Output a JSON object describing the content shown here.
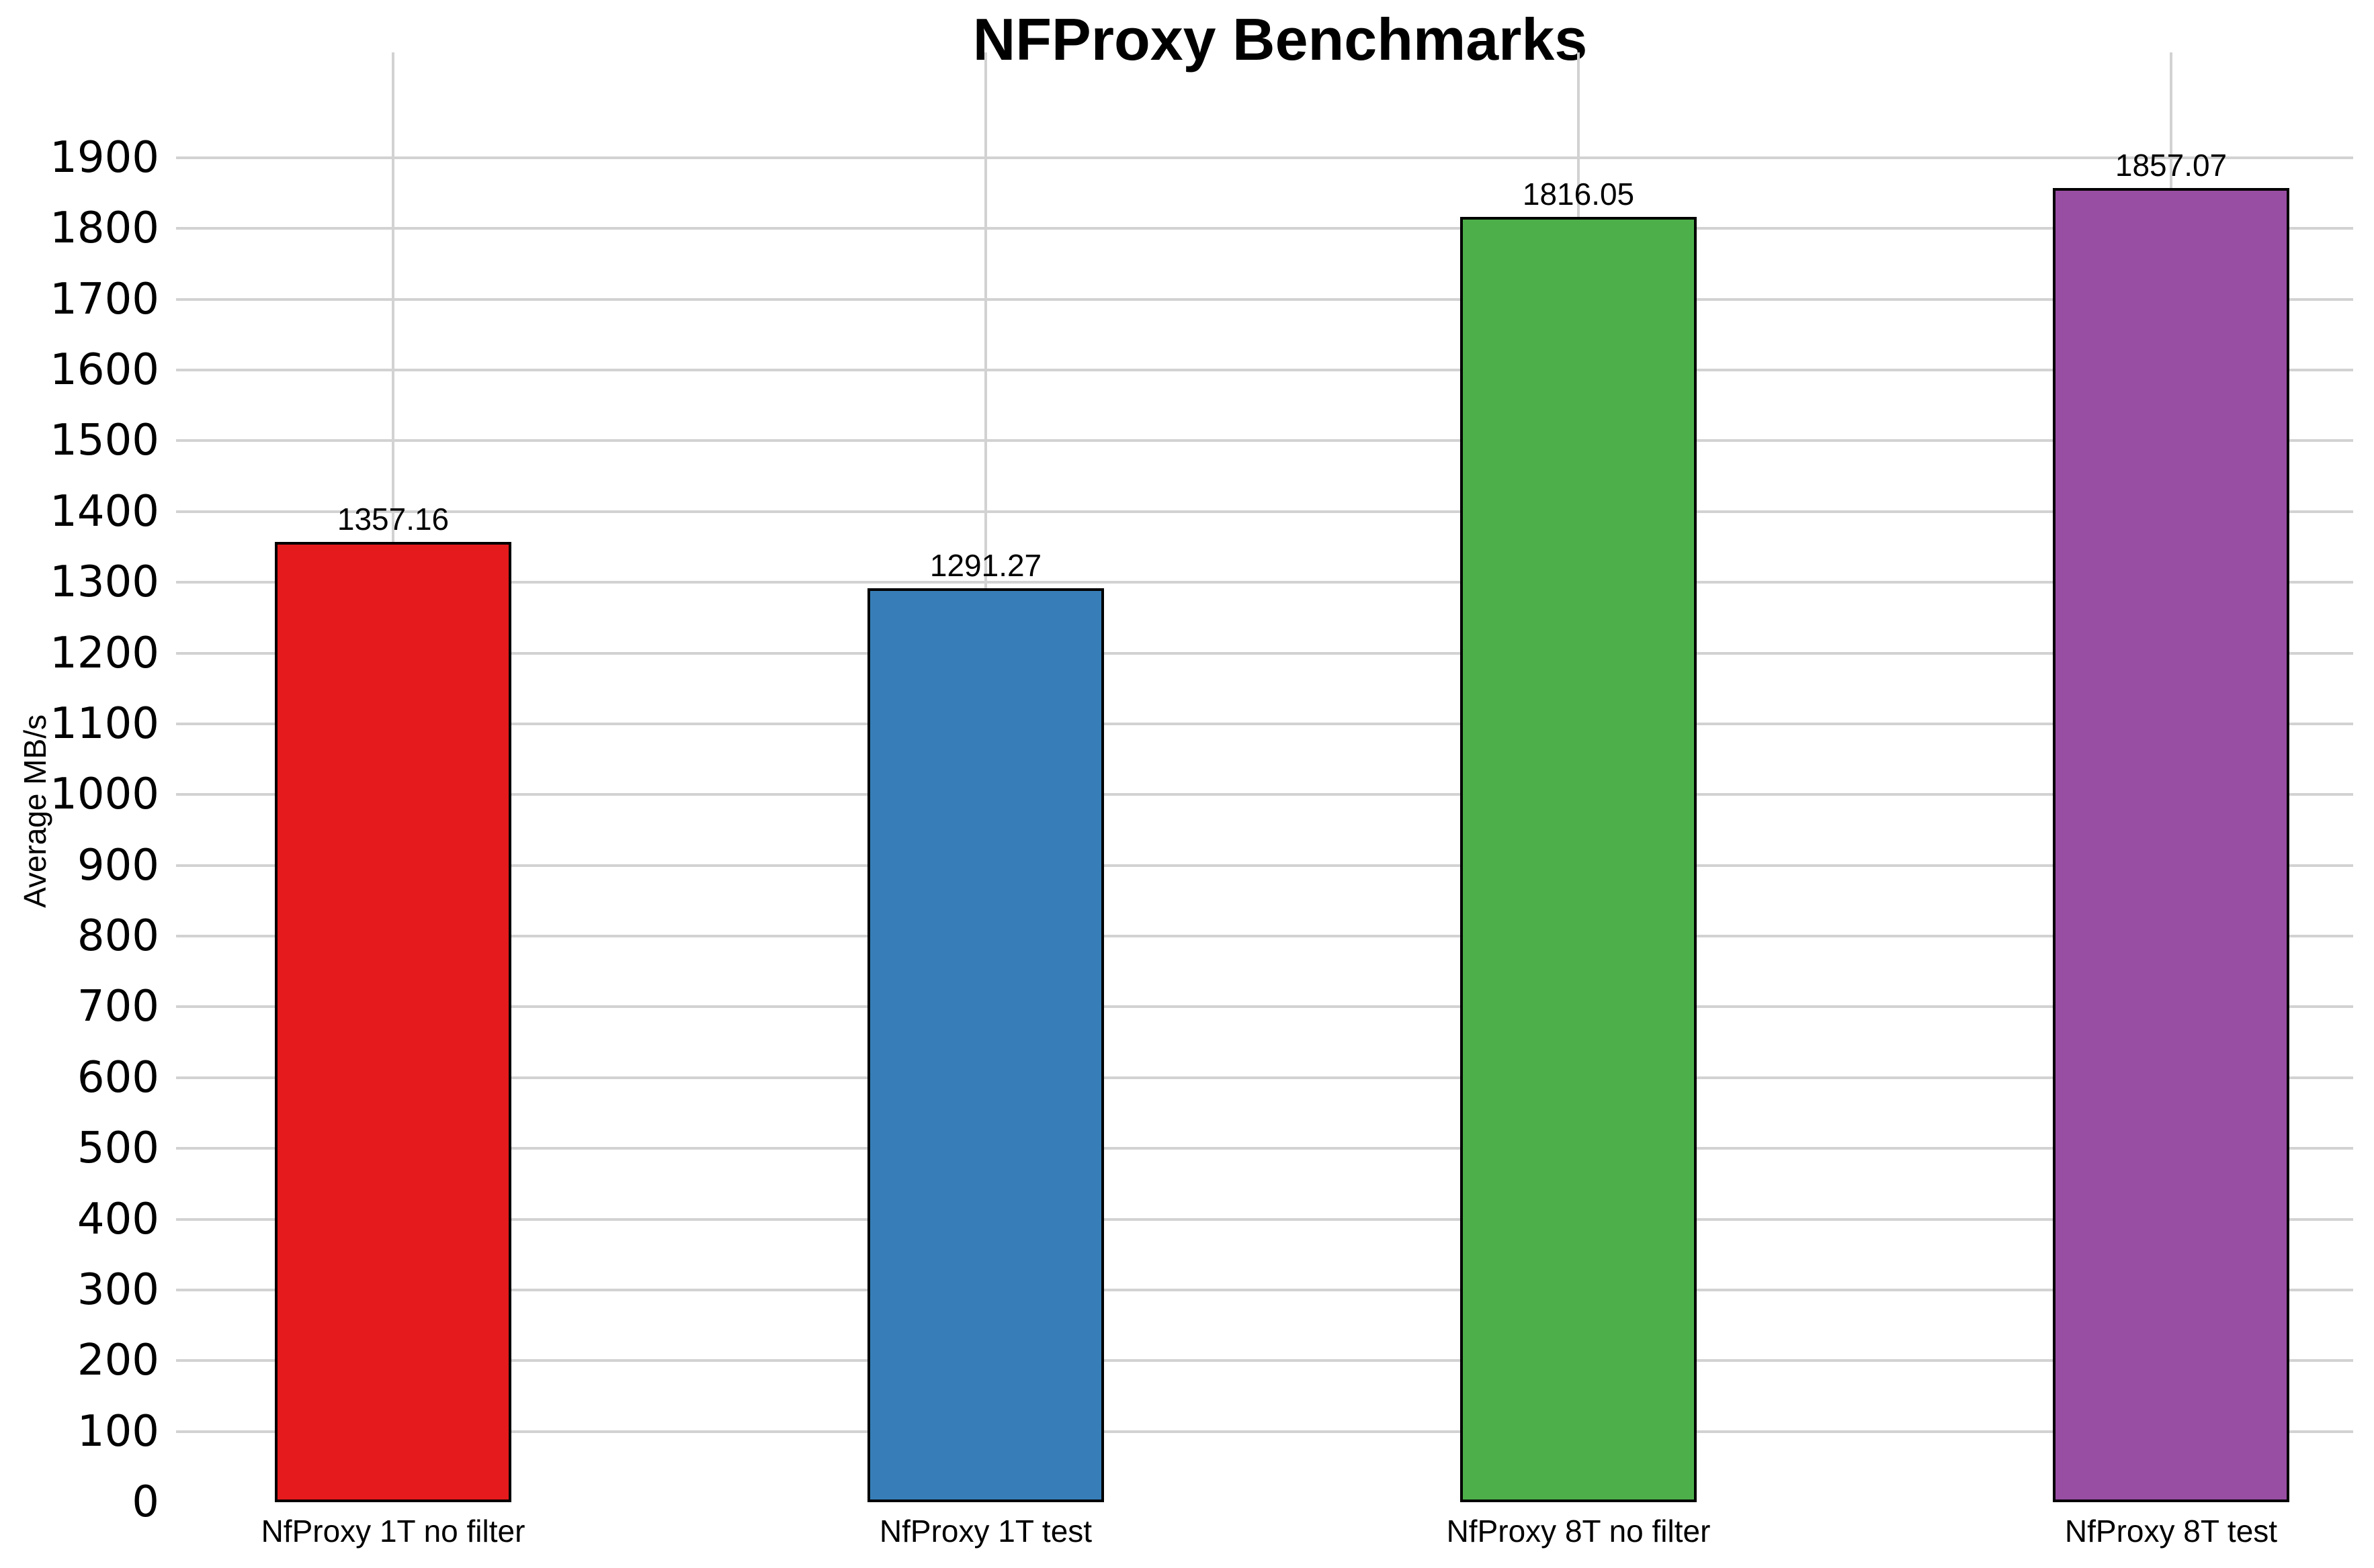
{
  "chart_data": {
    "type": "bar",
    "title": "NFProxy Benchmarks",
    "ylabel": "Average MB/s",
    "xlabel": "",
    "categories": [
      "NfProxy 1T no filter",
      "NfProxy 1T test",
      "NfProxy 8T no filter",
      "NfProxy 8T test"
    ],
    "values": [
      1357.16,
      1291.27,
      1816.05,
      1857.07
    ],
    "value_labels": [
      "1357.16",
      "1291.27",
      "1816.05",
      "1857.07"
    ],
    "bar_colors": [
      "#e41a1c",
      "#377eb8",
      "#4daf4a",
      "#984ea3"
    ],
    "bar_border_color": "#000000",
    "ylim": [
      0,
      1900
    ],
    "ytick_step": 100,
    "ytick_labels": [
      "0",
      "100",
      "200",
      "300",
      "400",
      "500",
      "600",
      "700",
      "800",
      "900",
      "1000",
      "1100",
      "1200",
      "1300",
      "1400",
      "1500",
      "1600",
      "1700",
      "1800",
      "1900"
    ],
    "grid": true,
    "gridline_color": "#d2d2d2",
    "legend_position": "none",
    "background_color": "#ffffff",
    "text_color": "#000000"
  }
}
